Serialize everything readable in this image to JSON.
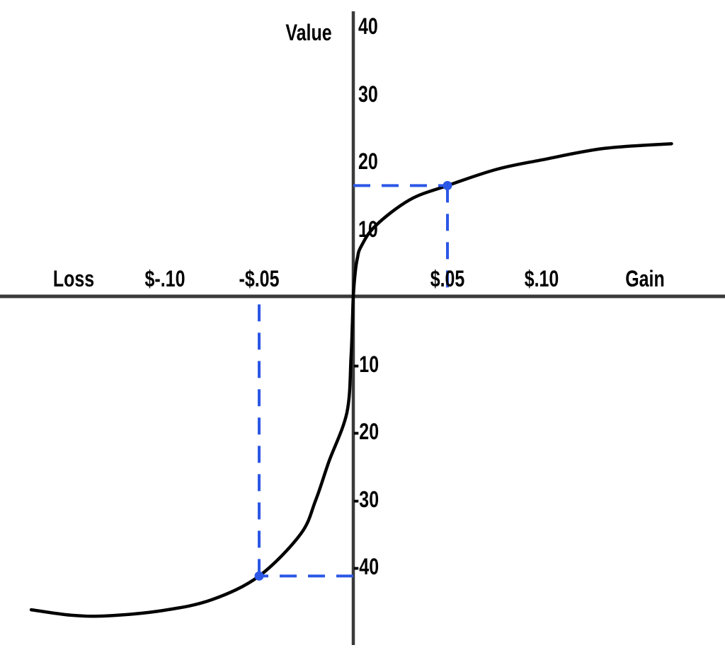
{
  "chart_data": {
    "type": "line",
    "title": "",
    "ylabel": "Value",
    "xlabel_negative": "Loss",
    "xlabel_positive": "Gain",
    "x_unit": "dollars",
    "grid": false,
    "legend": "none",
    "xlim": [
      -0.19,
      0.2
    ],
    "ylim": [
      -48,
      42
    ],
    "x_ticks": [
      {
        "value": -0.1,
        "label": "$-.10"
      },
      {
        "value": -0.05,
        "label": "-$.05"
      },
      {
        "value": 0.05,
        "label": "$.05"
      },
      {
        "value": 0.1,
        "label": "$.10"
      }
    ],
    "y_ticks": [
      {
        "value": 40,
        "label": "40"
      },
      {
        "value": 30,
        "label": "30"
      },
      {
        "value": 20,
        "label": "20"
      },
      {
        "value": 10,
        "label": "10"
      },
      {
        "value": -10,
        "label": "-10"
      },
      {
        "value": -20,
        "label": "-20"
      },
      {
        "value": -30,
        "label": "-30"
      },
      {
        "value": -40,
        "label": "-40"
      }
    ],
    "series": [
      {
        "name": "value-function-curve",
        "color": "#000000",
        "points": [
          [
            -0.171,
            -46.4
          ],
          [
            -0.15,
            -47.2
          ],
          [
            -0.131,
            -47.3
          ],
          [
            -0.101,
            -46.5
          ],
          [
            -0.075,
            -44.9
          ],
          [
            -0.05,
            -41.4
          ],
          [
            -0.028,
            -35.2
          ],
          [
            -0.02,
            -30.2
          ],
          [
            -0.013,
            -24.5
          ],
          [
            -0.0034,
            -17.2
          ],
          [
            -0.0012,
            -9.0
          ],
          [
            -0.0005,
            -4.0
          ],
          [
            0,
            0
          ],
          [
            0.001,
            3.5
          ],
          [
            0.0022,
            5.7
          ],
          [
            0.004,
            7.3
          ],
          [
            0.0116,
            10.4
          ],
          [
            0.03,
            14.3
          ],
          [
            0.05,
            16.4
          ],
          [
            0.076,
            18.8
          ],
          [
            0.1,
            20.2
          ],
          [
            0.133,
            21.9
          ],
          [
            0.169,
            22.6
          ]
        ]
      }
    ],
    "annotations": [
      {
        "name": "gain-example-point",
        "x": 0.05,
        "y": 16.4,
        "x_label": "$.05",
        "style": "dashed-guides-with-dot"
      },
      {
        "name": "loss-example-point",
        "x": -0.05,
        "y": -41.4,
        "x_label": "-$.05",
        "style": "dashed-guides-with-dot"
      }
    ],
    "colors": {
      "curve": "#000000",
      "axis": "#3a3a3a",
      "accent_blue": "#2b57e6",
      "text": "#000000",
      "background": "#ffffff"
    }
  }
}
